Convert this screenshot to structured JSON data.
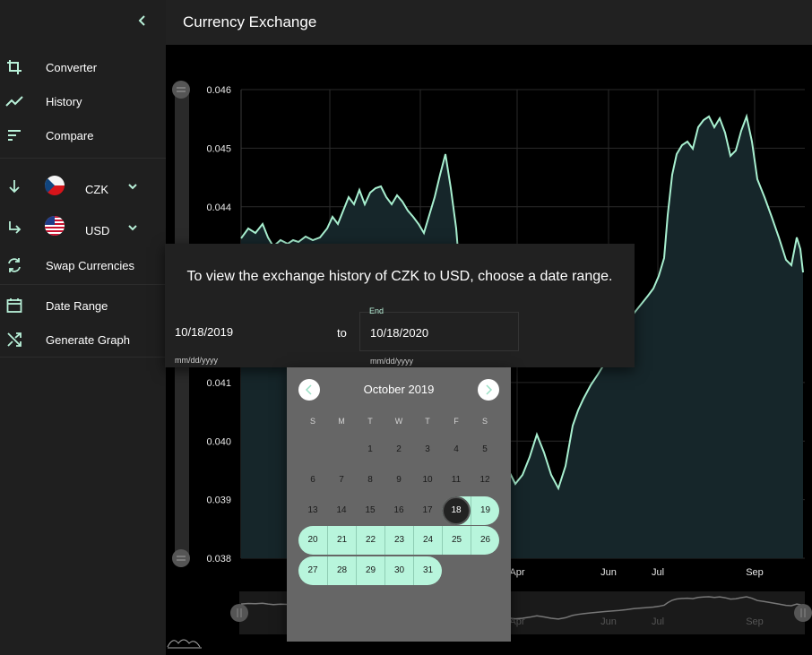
{
  "header": {
    "title": "Currency Exchange"
  },
  "sidebar": {
    "nav": [
      {
        "label": "Converter",
        "icon": "crop-icon"
      },
      {
        "label": "History",
        "icon": "trending-icon"
      },
      {
        "label": "Compare",
        "icon": "sort-icon"
      }
    ],
    "from_currency": {
      "code": "CZK",
      "flag": "czech-flag-icon"
    },
    "to_currency": {
      "code": "USD",
      "flag": "us-flag-icon"
    },
    "swap_label": "Swap Currencies",
    "date_range_label": "Date Range",
    "generate_label": "Generate Graph"
  },
  "dialog": {
    "title": "To view the exchange history of CZK to USD, choose a date range.",
    "start_value": "10/18/2019",
    "start_hint": "mm/dd/yyyy",
    "to_label": "to",
    "end_label": "End",
    "end_value": "10/18/2020",
    "end_hint": "mm/dd/yyyy"
  },
  "calendar": {
    "month": "October 2019",
    "weekdays": [
      "S",
      "M",
      "T",
      "W",
      "T",
      "F",
      "S"
    ],
    "first_weekday": 2,
    "days": 31,
    "selected_day": 18
  },
  "chart_data": {
    "type": "line",
    "title": "",
    "y_ticks": [
      "0.046",
      "0.045",
      "0.044",
      "0.041",
      "0.040",
      "0.039",
      "0.038"
    ],
    "x_ticks": [
      "Apr",
      "Jun",
      "Jul",
      "Sep"
    ],
    "ylim": [
      0.038,
      0.046
    ],
    "overview_labels": [
      "Apr",
      "Jun",
      "Jul",
      "Sep"
    ]
  },
  "colors": {
    "accent": "#b8f0d8",
    "line": "#a8f0d0",
    "range_fill": "#b8f5dc"
  }
}
